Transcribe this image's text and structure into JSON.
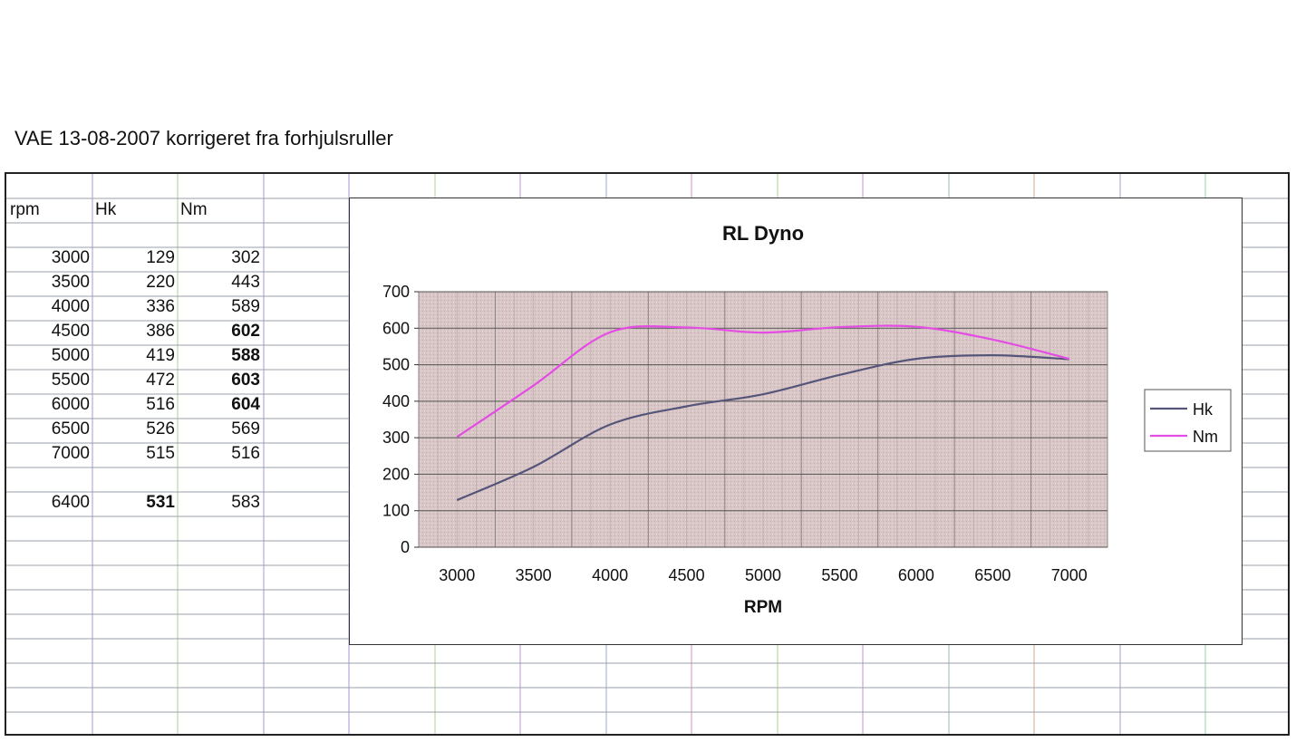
{
  "header": {
    "title": "VAE 13-08-2007 korrigeret fra forhjulsruller"
  },
  "table": {
    "headers": [
      "rpm",
      "Hk",
      "Nm"
    ],
    "rows": [
      [
        "3000",
        "129",
        "302"
      ],
      [
        "3500",
        "220",
        "443"
      ],
      [
        "4000",
        "336",
        "589"
      ],
      [
        "4500",
        "386",
        "602"
      ],
      [
        "5000",
        "419",
        "588"
      ],
      [
        "5500",
        "472",
        "603"
      ],
      [
        "6000",
        "516",
        "604"
      ],
      [
        "6500",
        "526",
        "569"
      ],
      [
        "7000",
        "515",
        "516"
      ]
    ],
    "bold_cells": [
      [
        3,
        2
      ],
      [
        4,
        2
      ],
      [
        5,
        2
      ],
      [
        6,
        2
      ]
    ],
    "summary": {
      "row": [
        "6400",
        "531",
        "583"
      ],
      "bold_index": 1
    }
  },
  "chart_data": {
    "type": "line",
    "title": "RL Dyno",
    "xlabel": "RPM",
    "ylabel": "",
    "categories": [
      "3000",
      "3500",
      "4000",
      "4500",
      "5000",
      "5500",
      "6000",
      "6500",
      "7000"
    ],
    "ylim": [
      0,
      700
    ],
    "yticks": [
      "0",
      "100",
      "200",
      "300",
      "400",
      "500",
      "600",
      "700"
    ],
    "grid": true,
    "legend": "right",
    "series": [
      {
        "name": "Hk",
        "color": "#55557a",
        "values": [
          129,
          220,
          336,
          386,
          419,
          472,
          516,
          526,
          515
        ]
      },
      {
        "name": "Nm",
        "color": "#e44de4",
        "values": [
          302,
          443,
          589,
          602,
          588,
          603,
          604,
          569,
          516
        ]
      }
    ],
    "plot_background": "#d9c7c7"
  }
}
